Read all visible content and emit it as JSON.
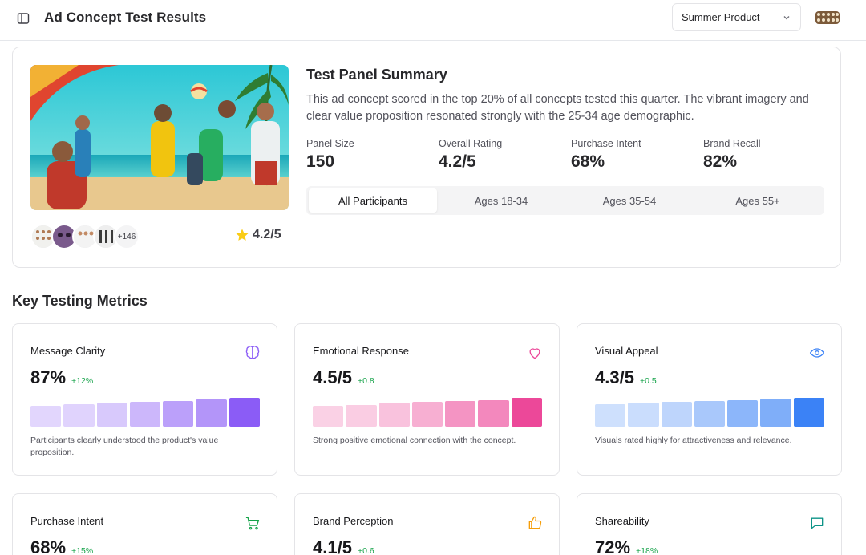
{
  "header": {
    "title": "Ad Concept Test Results",
    "product_select": "Summer Product"
  },
  "summary": {
    "title": "Test Panel Summary",
    "description": "This ad concept scored in the top 20% of all concepts tested this quarter. The vibrant imagery and clear value proposition resonated strongly with the 25-34 age demographic.",
    "stats": [
      {
        "label": "Panel Size",
        "value": "150"
      },
      {
        "label": "Overall Rating",
        "value": "4.2/5"
      },
      {
        "label": "Purchase Intent",
        "value": "68%"
      },
      {
        "label": "Brand Recall",
        "value": "82%"
      }
    ],
    "tabs": [
      "All Participants",
      "Ages 18-34",
      "Ages 35-54",
      "Ages 55+"
    ],
    "active_tab": "All Participants",
    "extra_participants": "+146",
    "rating": "4.2/5"
  },
  "metrics_section": {
    "title": "Key Testing Metrics",
    "cards": [
      {
        "label": "Message Clarity",
        "value": "87%",
        "delta": "+12%",
        "note": "Participants clearly understood the product's value proposition.",
        "icon": "brain-icon",
        "color": "#8b5cf6",
        "bars": [
          0.72,
          0.78,
          0.83,
          0.86,
          0.89,
          0.95,
          1.0
        ]
      },
      {
        "label": "Emotional Response",
        "value": "4.5/5",
        "delta": "+0.8",
        "note": "Strong positive emotional connection with the concept.",
        "icon": "heart-icon",
        "color": "#ec4899",
        "bars": [
          0.72,
          0.76,
          0.82,
          0.86,
          0.89,
          0.92,
          1.0
        ]
      },
      {
        "label": "Visual Appeal",
        "value": "4.3/5",
        "delta": "+0.5",
        "note": "Visuals rated highly for attractiveness and relevance.",
        "icon": "eye-icon",
        "color": "#3b82f6",
        "bars": [
          0.78,
          0.82,
          0.86,
          0.9,
          0.93,
          0.96,
          1.0
        ]
      },
      {
        "label": "Purchase Intent",
        "value": "68%",
        "delta": "+15%",
        "note": "",
        "icon": "cart-icon",
        "color": "#16a34a",
        "bars": []
      },
      {
        "label": "Brand Perception",
        "value": "4.1/5",
        "delta": "+0.6",
        "note": "",
        "icon": "thumbs-up-icon",
        "color": "#f59e0b",
        "bars": []
      },
      {
        "label": "Shareability",
        "value": "72%",
        "delta": "+18%",
        "note": "",
        "icon": "message-icon",
        "color": "#0d9488",
        "bars": []
      }
    ]
  }
}
